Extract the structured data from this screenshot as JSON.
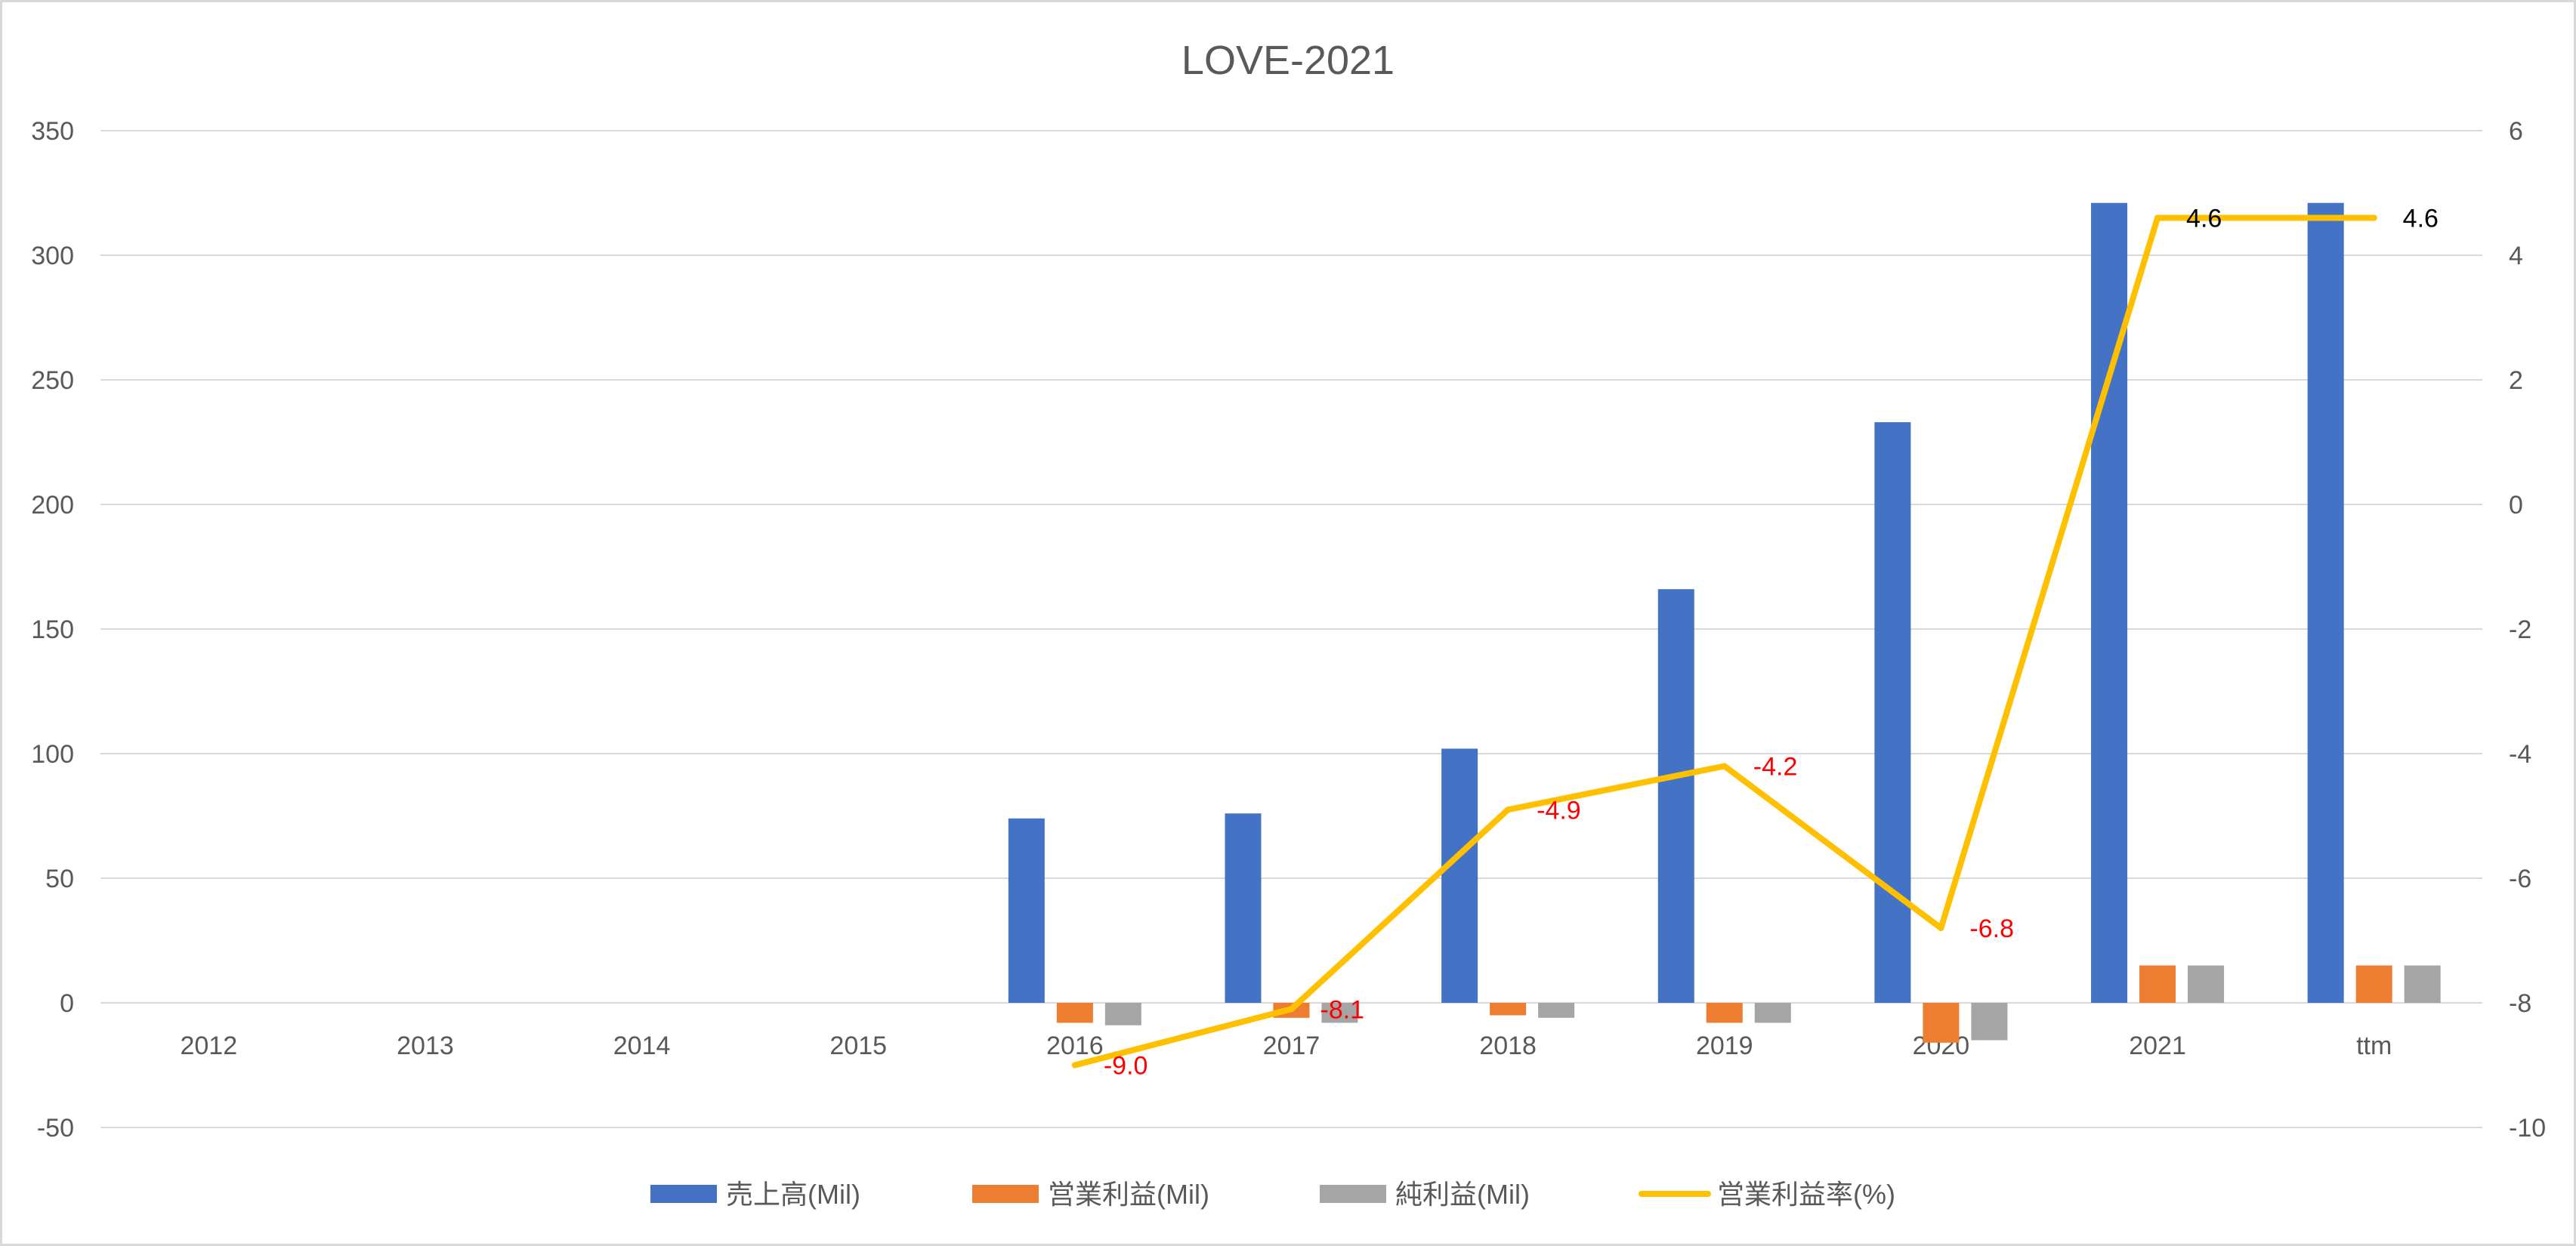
{
  "chart_data": {
    "type": "bar",
    "title": "LOVE-2021",
    "categories": [
      "2012",
      "2013",
      "2014",
      "2015",
      "2016",
      "2017",
      "2018",
      "2019",
      "2020",
      "2021",
      "ttm"
    ],
    "y_left": {
      "min": -50,
      "max": 350,
      "step": 50,
      "ticks": [
        "-50",
        "0",
        "50",
        "100",
        "150",
        "200",
        "250",
        "300",
        "350"
      ]
    },
    "y_right": {
      "min": -10,
      "max": 6,
      "step": 2,
      "ticks": [
        "-10",
        "-8",
        "-6",
        "-4",
        "-2",
        "0",
        "2",
        "4",
        "6"
      ]
    },
    "grid": true,
    "legend_position": "bottom",
    "series": [
      {
        "name": "売上高(Mil)",
        "type": "bar",
        "axis": "left",
        "color": "#4472C4",
        "values": [
          null,
          null,
          null,
          null,
          74,
          76,
          102,
          166,
          233,
          321,
          321
        ]
      },
      {
        "name": "営業利益(Mil)",
        "type": "bar",
        "axis": "left",
        "color": "#ED7D31",
        "values": [
          null,
          null,
          null,
          null,
          -8,
          -6,
          -5,
          -8,
          -16,
          15,
          15
        ]
      },
      {
        "name": "純利益(Mil)",
        "type": "bar",
        "axis": "left",
        "color": "#A5A5A5",
        "values": [
          null,
          null,
          null,
          null,
          -9,
          -8,
          -6,
          -8,
          -15,
          15,
          15
        ]
      },
      {
        "name": "営業利益率(%)",
        "type": "line",
        "axis": "right",
        "color": "#FFC000",
        "values": [
          null,
          null,
          null,
          null,
          -9.0,
          -8.1,
          -4.9,
          -4.2,
          -6.8,
          4.6,
          4.6
        ],
        "labels": [
          "",
          "",
          "",
          "",
          "-9.0",
          "-8.1",
          "-4.9",
          "-4.2",
          "-6.8",
          "4.6",
          "4.6"
        ]
      }
    ]
  }
}
